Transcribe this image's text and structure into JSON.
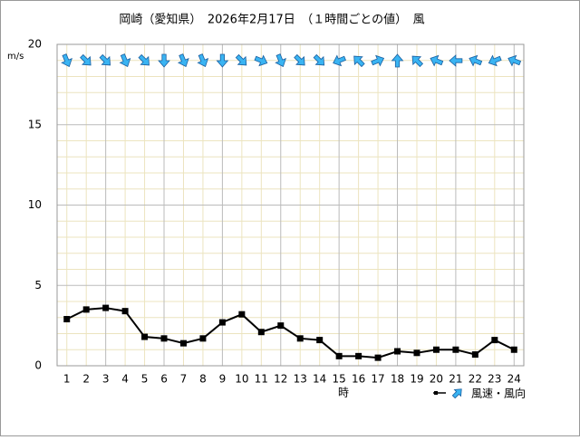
{
  "chart_data": {
    "type": "line",
    "title": "岡崎（愛知県）　2026年2月17日　（１時間ごとの値）　風",
    "y_unit": "m/s",
    "x_label": "時",
    "legend_label": "風速・風向",
    "categories": [
      1,
      2,
      3,
      4,
      5,
      6,
      7,
      8,
      9,
      10,
      11,
      12,
      13,
      14,
      15,
      16,
      17,
      18,
      19,
      20,
      21,
      22,
      23,
      24
    ],
    "series": [
      {
        "color": "#000000",
        "values": [
          2.9,
          3.5,
          3.6,
          3.4,
          1.8,
          1.7,
          1.4,
          1.7,
          2.7,
          3.2,
          2.1,
          2.5,
          1.7,
          1.6,
          0.6,
          0.6,
          0.5,
          0.9,
          0.8,
          1.0,
          1.0,
          0.7,
          1.6,
          1.0
        ]
      },
      {
        "color": "#3ab4f2",
        "direction_degrees": [
          157.5,
          135,
          135,
          157.5,
          135,
          180,
          157.5,
          157.5,
          180,
          135,
          112.5,
          157.5,
          135,
          135,
          247.5,
          315,
          67.5,
          0,
          315,
          292.5,
          270,
          292.5,
          247.5,
          292.5
        ]
      }
    ],
    "ylim": [
      0,
      20
    ],
    "yticks": [
      0,
      5,
      10,
      15,
      20
    ],
    "minor_yticks": [
      1,
      2,
      3,
      4,
      6,
      7,
      8,
      9,
      11,
      12,
      13,
      14,
      16,
      17,
      18,
      19
    ],
    "grid": true
  }
}
